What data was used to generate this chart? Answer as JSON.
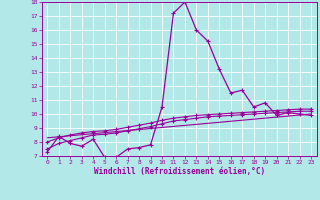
{
  "xlabel": "Windchill (Refroidissement éolien,°C)",
  "xlim": [
    -0.5,
    23.5
  ],
  "ylim": [
    7,
    18
  ],
  "yticks": [
    7,
    8,
    9,
    10,
    11,
    12,
    13,
    14,
    15,
    16,
    17,
    18
  ],
  "xticks": [
    0,
    1,
    2,
    3,
    4,
    5,
    6,
    7,
    8,
    9,
    10,
    11,
    12,
    13,
    14,
    15,
    16,
    17,
    18,
    19,
    20,
    21,
    22,
    23
  ],
  "bg_color": "#b3e8e8",
  "line_color": "#990099",
  "grid_color": "#ffffff",
  "series1": {
    "x": [
      0,
      1,
      2,
      3,
      4,
      5,
      6,
      7,
      8,
      9,
      10,
      11,
      12,
      13,
      14,
      15,
      16,
      17,
      18,
      19,
      20,
      21,
      22,
      23
    ],
    "y": [
      7.3,
      8.4,
      7.9,
      7.7,
      8.2,
      6.9,
      6.9,
      7.5,
      7.6,
      7.8,
      10.5,
      17.2,
      18.0,
      16.0,
      15.2,
      13.2,
      11.5,
      11.7,
      10.5,
      10.8,
      9.9,
      10.1,
      10.0,
      9.9
    ]
  },
  "series2": {
    "x": [
      0,
      1,
      2,
      3,
      4,
      5,
      6,
      7,
      8,
      9,
      10,
      11,
      12,
      13,
      14,
      15,
      16,
      17,
      18,
      19,
      20,
      21,
      22,
      23
    ],
    "y": [
      7.5,
      7.9,
      8.1,
      8.3,
      8.5,
      8.55,
      8.65,
      8.8,
      8.95,
      9.1,
      9.3,
      9.5,
      9.6,
      9.7,
      9.8,
      9.85,
      9.9,
      9.95,
      10.0,
      10.05,
      10.1,
      10.15,
      10.2,
      10.2
    ]
  },
  "series3": {
    "x": [
      0,
      1,
      2,
      3,
      4,
      5,
      6,
      7,
      8,
      9,
      10,
      11,
      12,
      13,
      14,
      15,
      16,
      17,
      18,
      19,
      20,
      21,
      22,
      23
    ],
    "y": [
      8.0,
      8.3,
      8.5,
      8.65,
      8.75,
      8.8,
      8.9,
      9.05,
      9.2,
      9.35,
      9.55,
      9.7,
      9.8,
      9.9,
      9.95,
      10.0,
      10.05,
      10.1,
      10.15,
      10.2,
      10.25,
      10.3,
      10.35,
      10.35
    ]
  },
  "series4": {
    "x": [
      0,
      23
    ],
    "y": [
      8.3,
      10.0
    ]
  }
}
